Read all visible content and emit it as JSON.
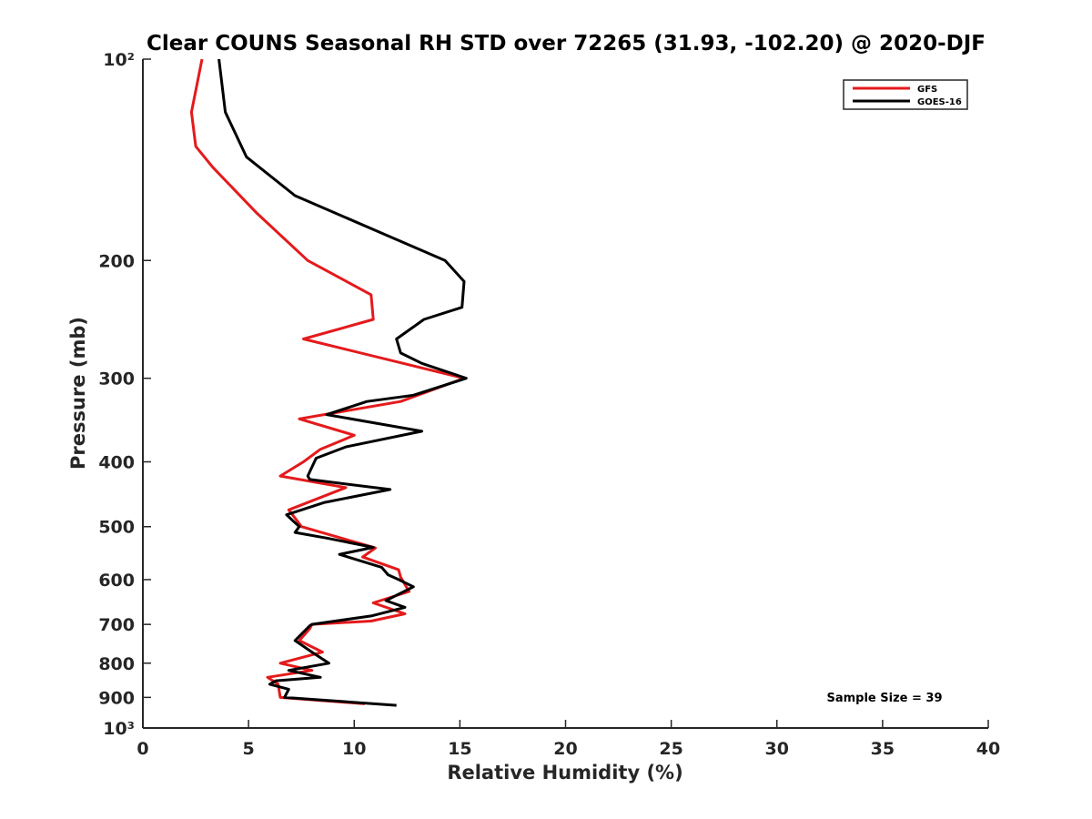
{
  "chart_data": {
    "type": "line",
    "title": "Clear COUNS Seasonal RH STD over 72265 (31.93, -102.20) @ 2020-DJF",
    "xlabel": "Relative Humidity (%)",
    "ylabel": "Pressure (mb)",
    "xlim": [
      0,
      40
    ],
    "ylim": [
      100,
      1000
    ],
    "yscale": "log",
    "yreversed": true,
    "x_ticks": [
      0,
      5,
      10,
      15,
      20,
      25,
      30,
      35,
      40
    ],
    "x_tick_labels": [
      "0",
      "5",
      "10",
      "15",
      "20",
      "25",
      "30",
      "35",
      "40"
    ],
    "y_ticks": [
      100,
      200,
      300,
      400,
      500,
      600,
      700,
      800,
      900,
      1000
    ],
    "y_tick_labels": [
      "10²",
      "200",
      "300",
      "400",
      "500",
      "600",
      "700",
      "800",
      "900",
      "10³"
    ],
    "legend_position": "top-right",
    "series": [
      {
        "name": "GFS",
        "color": "#e41a1c",
        "x": [
          2.8,
          2.3,
          2.5,
          3.3,
          5.4,
          7.8,
          10.8,
          10.9,
          7.6,
          15.2,
          12.2,
          7.4,
          10.0,
          8.4,
          7.6,
          6.5,
          9.6,
          6.9,
          7.3,
          7.5,
          11.0,
          10.4,
          12.1,
          12.2,
          12.6,
          10.9,
          12.4,
          10.8,
          8.0,
          7.9,
          7.4,
          8.5,
          6.5,
          8.0,
          5.9,
          6.4,
          6.5,
          10.5
        ],
        "pressure": [
          100,
          120,
          135,
          145,
          170,
          200,
          225,
          245,
          262,
          300,
          325,
          345,
          365,
          383,
          400,
          420,
          437,
          472,
          490,
          500,
          538,
          555,
          580,
          595,
          625,
          650,
          675,
          692,
          700,
          710,
          740,
          770,
          800,
          820,
          840,
          860,
          900,
          920
        ]
      },
      {
        "name": "GOES-16",
        "color": "#000000",
        "x": [
          3.6,
          3.9,
          4.9,
          7.2,
          14.3,
          15.2,
          15.1,
          13.3,
          12.0,
          12.2,
          13.2,
          15.3,
          12.8,
          10.6,
          8.7,
          13.2,
          9.6,
          8.2,
          7.8,
          7.9,
          11.7,
          8.6,
          6.8,
          7.1,
          7.4,
          7.2,
          8.7,
          10.9,
          9.3,
          11.3,
          11.6,
          12.1,
          12.8,
          11.5,
          12.4,
          10.8,
          8.0,
          7.9,
          7.2,
          8.0,
          8.8,
          6.9,
          8.4,
          6.3,
          6.0,
          6.9,
          6.7,
          12.0
        ],
        "pressure": [
          100,
          120,
          140,
          160,
          200,
          215,
          235,
          245,
          262,
          275,
          285,
          300,
          318,
          325,
          340,
          360,
          380,
          395,
          420,
          425,
          440,
          460,
          480,
          490,
          500,
          510,
          520,
          537,
          550,
          575,
          590,
          600,
          615,
          645,
          660,
          680,
          700,
          703,
          740,
          770,
          800,
          820,
          840,
          850,
          860,
          875,
          900,
          925
        ]
      }
    ],
    "annotation": "Sample Size = 39"
  }
}
